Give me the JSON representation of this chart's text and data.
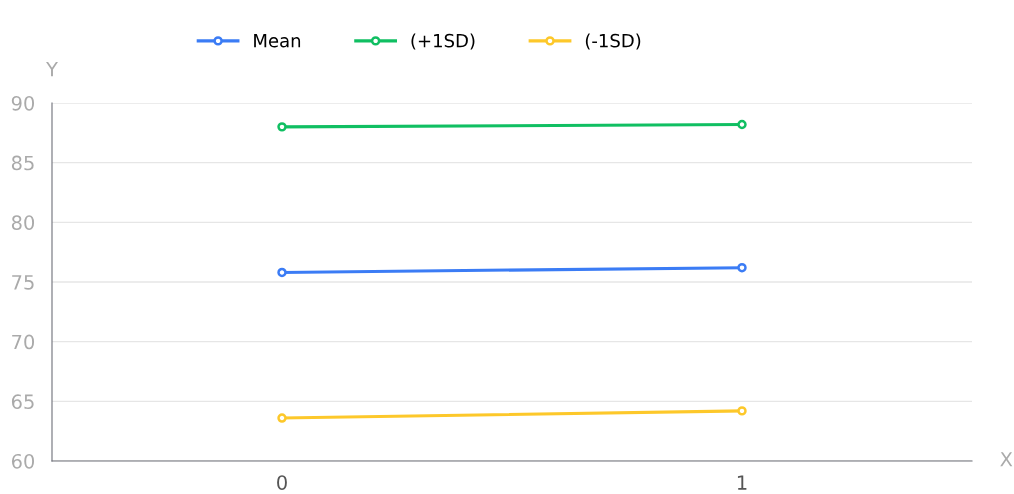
{
  "chart_data": {
    "type": "line",
    "xlabel": "X",
    "ylabel": "Y",
    "categories": [
      "0",
      "1"
    ],
    "series": [
      {
        "name": "Mean",
        "color": "#3b7cf5",
        "values": [
          75.8,
          76.2
        ]
      },
      {
        "name": "(+1SD)",
        "color": "#10bf62",
        "values": [
          88.0,
          88.2
        ]
      },
      {
        "name": "(-1SD)",
        "color": "#fdc82a",
        "values": [
          63.6,
          64.2
        ]
      }
    ],
    "ylim": [
      60,
      90
    ],
    "yticks": [
      60,
      65,
      70,
      75,
      80,
      85,
      90
    ],
    "grid": "y",
    "legend": "top",
    "marker": "circle"
  }
}
